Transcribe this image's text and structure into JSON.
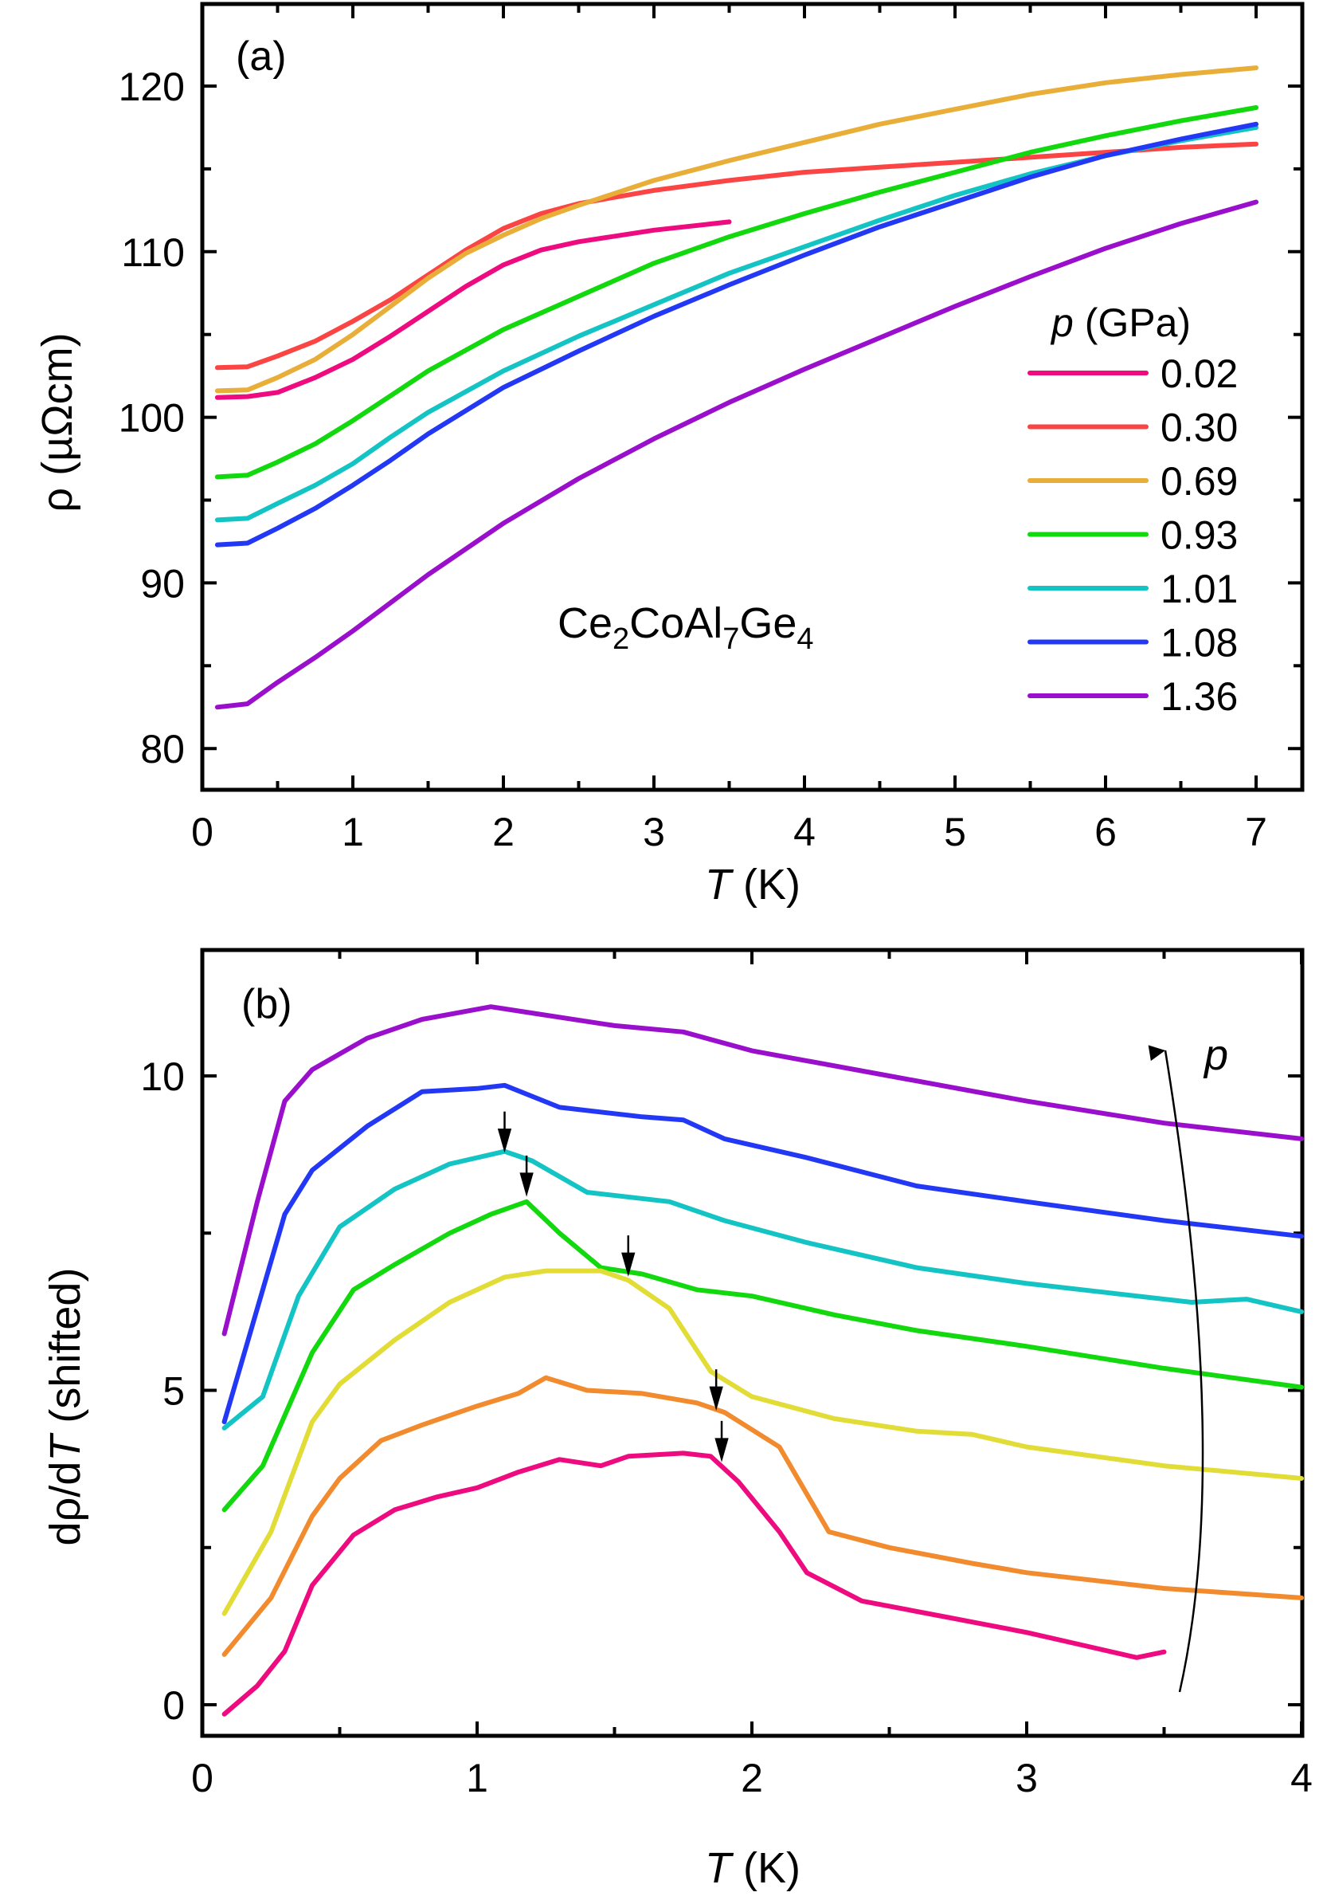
{
  "chart_data": [
    {
      "panel": "(a)",
      "type": "line",
      "title": "",
      "annotation": "Ce2CoAl7Ge4",
      "xlabel": "T (K)",
      "ylabel": "ρ (µΩcm)",
      "xlim": [
        0,
        7.4
      ],
      "ylim": [
        77,
        124
      ],
      "xticks": [
        0,
        1,
        2,
        3,
        4,
        5,
        6,
        7
      ],
      "yticks": [
        80,
        90,
        100,
        110,
        120
      ],
      "grid": false,
      "legend": {
        "title": "p (GPa)",
        "position": "right"
      },
      "series": [
        {
          "name": "0.02",
          "color": "#ee0a7f",
          "x": [
            0.1,
            0.3,
            0.5,
            0.75,
            1.0,
            1.25,
            1.5,
            1.75,
            2.0,
            2.25,
            2.5,
            3.0,
            3.5
          ],
          "y": [
            101.2,
            101.25,
            101.5,
            102.4,
            103.5,
            104.9,
            106.4,
            107.9,
            109.2,
            110.1,
            110.6,
            111.3,
            111.8
          ]
        },
        {
          "name": "0.30",
          "color": "#fb4444",
          "x": [
            0.1,
            0.3,
            0.5,
            0.75,
            1.0,
            1.25,
            1.5,
            1.75,
            2.0,
            2.25,
            2.5,
            3.0,
            3.5,
            4.0,
            4.5,
            5.0,
            5.5,
            6.0,
            6.5,
            7.0
          ],
          "y": [
            103.0,
            103.05,
            103.7,
            104.6,
            105.8,
            107.1,
            108.6,
            110.1,
            111.4,
            112.3,
            112.9,
            113.7,
            114.3,
            114.8,
            115.1,
            115.4,
            115.7,
            116.0,
            116.3,
            116.5
          ]
        },
        {
          "name": "0.69",
          "color": "#e8ae38",
          "x": [
            0.1,
            0.3,
            0.5,
            0.75,
            1.0,
            1.25,
            1.5,
            1.75,
            2.0,
            2.25,
            2.5,
            3.0,
            3.5,
            4.0,
            4.5,
            5.0,
            5.5,
            6.0,
            6.5,
            7.0
          ],
          "y": [
            101.6,
            101.65,
            102.4,
            103.5,
            105.0,
            106.7,
            108.4,
            109.9,
            111.0,
            112.0,
            112.8,
            114.3,
            115.5,
            116.6,
            117.7,
            118.6,
            119.5,
            120.2,
            120.7,
            121.1
          ]
        },
        {
          "name": "0.93",
          "color": "#12d80e",
          "x": [
            0.1,
            0.3,
            0.5,
            0.75,
            1.0,
            1.25,
            1.5,
            2.0,
            2.5,
            3.0,
            3.5,
            4.0,
            4.5,
            5.0,
            5.5,
            6.0,
            6.5,
            7.0
          ],
          "y": [
            96.4,
            96.5,
            97.3,
            98.4,
            99.8,
            101.3,
            102.8,
            105.3,
            107.3,
            109.3,
            110.9,
            112.3,
            113.6,
            114.8,
            116.0,
            117.0,
            117.9,
            118.7
          ]
        },
        {
          "name": "1.01",
          "color": "#14c4c4",
          "x": [
            0.1,
            0.3,
            0.5,
            0.75,
            1.0,
            1.25,
            1.5,
            2.0,
            2.5,
            3.0,
            3.5,
            4.0,
            4.5,
            5.0,
            5.5,
            6.0,
            6.5,
            7.0
          ],
          "y": [
            93.8,
            93.9,
            94.8,
            95.9,
            97.2,
            98.8,
            100.3,
            102.8,
            104.9,
            106.8,
            108.7,
            110.3,
            111.9,
            113.4,
            114.7,
            115.8,
            116.7,
            117.5
          ]
        },
        {
          "name": "1.08",
          "color": "#2238f5",
          "x": [
            0.1,
            0.3,
            0.5,
            0.75,
            1.0,
            1.25,
            1.5,
            2.0,
            2.5,
            3.0,
            3.5,
            4.0,
            4.5,
            5.0,
            5.5,
            6.0,
            6.5,
            7.0
          ],
          "y": [
            92.3,
            92.4,
            93.3,
            94.5,
            95.9,
            97.4,
            99.0,
            101.8,
            104.0,
            106.1,
            108.0,
            109.8,
            111.5,
            113.0,
            114.5,
            115.8,
            116.8,
            117.7
          ]
        },
        {
          "name": "1.36",
          "color": "#9a0fcc",
          "x": [
            0.1,
            0.3,
            0.5,
            0.75,
            1.0,
            1.25,
            1.5,
            2.0,
            2.5,
            3.0,
            3.5,
            4.0,
            4.5,
            5.0,
            5.5,
            6.0,
            6.5,
            7.0
          ],
          "y": [
            82.5,
            82.7,
            84.0,
            85.5,
            87.1,
            88.8,
            90.5,
            93.6,
            96.3,
            98.7,
            100.9,
            102.9,
            104.8,
            106.7,
            108.5,
            110.2,
            111.7,
            113.0
          ]
        }
      ]
    },
    {
      "panel": "(b)",
      "type": "line",
      "title": "",
      "xlabel": "T (K)",
      "ylabel": "dρ/dT (shifted)",
      "xlim": [
        0,
        4
      ],
      "ylim": [
        -0.5,
        12
      ],
      "xticks": [
        0,
        1,
        2,
        3,
        4
      ],
      "yticks": [
        0,
        5,
        10
      ],
      "grid": false,
      "annotation": "p (arrow indicating increasing pressure upward)",
      "series": [
        {
          "name": "1.36",
          "color": "#9a0fcc",
          "x": [
            0.08,
            0.2,
            0.3,
            0.4,
            0.5,
            0.6,
            0.8,
            1.05,
            1.2,
            1.5,
            1.75,
            2.0,
            2.5,
            3.0,
            3.5,
            4.0
          ],
          "y": [
            5.9,
            8.0,
            9.6,
            10.1,
            10.35,
            10.6,
            10.9,
            11.1,
            11.0,
            10.8,
            10.7,
            10.4,
            10.0,
            9.6,
            9.25,
            9.0
          ]
        },
        {
          "name": "1.08",
          "color": "#2238f5",
          "x": [
            0.08,
            0.2,
            0.3,
            0.4,
            0.6,
            0.8,
            1.0,
            1.1,
            1.3,
            1.6,
            1.75,
            1.9,
            2.2,
            2.6,
            3.0,
            3.5,
            4.0
          ],
          "y": [
            4.5,
            6.3,
            7.8,
            8.5,
            9.2,
            9.75,
            9.8,
            9.85,
            9.5,
            9.35,
            9.3,
            9.0,
            8.7,
            8.25,
            8.0,
            7.7,
            7.45
          ]
        },
        {
          "name": "1.01",
          "color": "#14c4c4",
          "x": [
            0.08,
            0.22,
            0.35,
            0.5,
            0.7,
            0.9,
            1.1,
            1.2,
            1.4,
            1.7,
            1.9,
            2.2,
            2.6,
            3.0,
            3.3,
            3.6,
            3.8,
            4.0
          ],
          "y": [
            4.4,
            4.9,
            6.5,
            7.6,
            8.2,
            8.6,
            8.8,
            8.65,
            8.15,
            8.0,
            7.7,
            7.35,
            6.95,
            6.7,
            6.55,
            6.4,
            6.45,
            6.25
          ]
        },
        {
          "name": "0.93",
          "color": "#12d80e",
          "x": [
            0.08,
            0.22,
            0.4,
            0.55,
            0.7,
            0.9,
            1.05,
            1.18,
            1.3,
            1.45,
            1.6,
            1.8,
            2.0,
            2.3,
            2.6,
            3.0,
            3.5,
            4.0
          ],
          "y": [
            3.1,
            3.8,
            5.6,
            6.6,
            7.0,
            7.5,
            7.8,
            8.0,
            7.5,
            6.95,
            6.85,
            6.6,
            6.5,
            6.2,
            5.95,
            5.7,
            5.35,
            5.05
          ]
        },
        {
          "name": "0.69",
          "color": "#e2dc36",
          "x": [
            0.08,
            0.25,
            0.4,
            0.5,
            0.7,
            0.9,
            1.1,
            1.25,
            1.45,
            1.55,
            1.7,
            1.85,
            2.0,
            2.3,
            2.6,
            2.8,
            3.0,
            3.5,
            4.0
          ],
          "y": [
            1.45,
            2.75,
            4.5,
            5.1,
            5.8,
            6.4,
            6.8,
            6.9,
            6.9,
            6.75,
            6.3,
            5.3,
            4.9,
            4.55,
            4.35,
            4.3,
            4.1,
            3.8,
            3.6
          ]
        },
        {
          "name": "0.30",
          "color": "#f28a2e",
          "x": [
            0.08,
            0.25,
            0.4,
            0.5,
            0.65,
            0.8,
            1.0,
            1.15,
            1.25,
            1.4,
            1.6,
            1.8,
            1.9,
            2.1,
            2.28,
            2.5,
            2.8,
            3.0,
            3.5,
            4.0
          ],
          "y": [
            0.8,
            1.7,
            3.0,
            3.6,
            4.2,
            4.45,
            4.75,
            4.95,
            5.2,
            5.0,
            4.95,
            4.8,
            4.65,
            4.1,
            2.75,
            2.5,
            2.25,
            2.1,
            1.85,
            1.7
          ]
        },
        {
          "name": "0.02",
          "color": "#ee0a7f",
          "x": [
            0.08,
            0.2,
            0.3,
            0.4,
            0.55,
            0.7,
            0.85,
            1.0,
            1.15,
            1.3,
            1.45,
            1.55,
            1.75,
            1.85,
            1.95,
            2.1,
            2.2,
            2.4,
            2.7,
            3.0,
            3.2,
            3.4,
            3.5
          ],
          "y": [
            -0.15,
            0.3,
            0.85,
            1.9,
            2.7,
            3.1,
            3.3,
            3.45,
            3.7,
            3.9,
            3.8,
            3.95,
            4.0,
            3.95,
            3.55,
            2.75,
            2.1,
            1.65,
            1.4,
            1.15,
            0.95,
            0.75,
            0.84
          ]
        }
      ],
      "arrows": [
        {
          "series": "1.01",
          "x": 1.1,
          "y": 8.8
        },
        {
          "series": "0.93",
          "x": 1.18,
          "y": 8.1
        },
        {
          "series": "0.69",
          "x": 1.55,
          "y": 6.83
        },
        {
          "series": "0.30",
          "x": 1.87,
          "y": 4.7
        },
        {
          "series": "0.02",
          "x": 1.89,
          "y": 3.88
        }
      ]
    }
  ],
  "panel_a": {
    "tag": "(a)",
    "xlabel_italic": "T",
    "xlabel_unit": " (K)",
    "ylabel": "ρ  (µΩcm)",
    "xticks": [
      "0",
      "1",
      "2",
      "3",
      "4",
      "5",
      "6",
      "7"
    ],
    "yticks": [
      "80",
      "90",
      "100",
      "110",
      "120"
    ],
    "compound": {
      "ce": "Ce",
      "s1": "2",
      "co": "CoAl",
      "s2": "7",
      "ge": "Ge",
      "s3": "4"
    },
    "legend": {
      "title_italic": "p",
      "title_unit": " (GPa)",
      "entries": [
        "0.02",
        "0.30",
        "0.69",
        "0.93",
        "1.01",
        "1.08",
        "1.36"
      ]
    }
  },
  "panel_b": {
    "tag": "(b)",
    "xlabel_italic": "T",
    "xlabel_unit": " (K)",
    "ylabel_pre": "dρ/d",
    "ylabel_italic": "T",
    "ylabel_post": " (shifted)",
    "xticks": [
      "0",
      "1",
      "2",
      "3",
      "4"
    ],
    "yticks": [
      "0",
      "5",
      "10"
    ],
    "pressure_label": "p"
  }
}
